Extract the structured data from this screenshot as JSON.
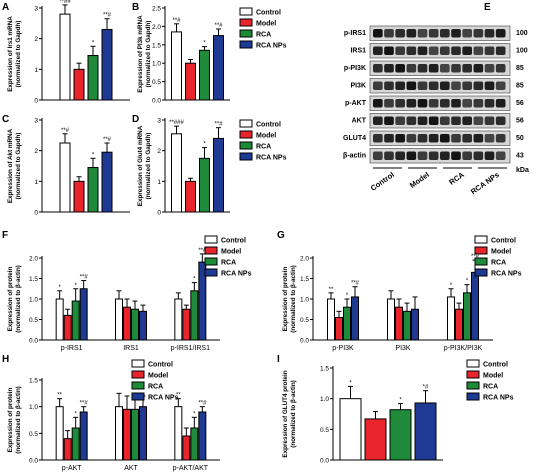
{
  "colors": {
    "control": "#ffffff",
    "model": "#e8252b",
    "rca": "#1f8a3a",
    "rca_nps": "#1f3a93",
    "bar_stroke": "#000000"
  },
  "legend_labels": [
    "Control",
    "Model",
    "RCA",
    "RCA NPs"
  ],
  "chart_data": [
    {
      "id": "A",
      "type": "bar",
      "ylabel": "Expression of Irs1 mRNA\n(normalized to Gapdh)",
      "ylim": [
        0,
        3
      ],
      "yticks": [
        "0",
        "1",
        "2",
        "3"
      ],
      "categories": [
        ""
      ],
      "series": [
        {
          "name": "Control",
          "values": [
            2.8
          ],
          "err": [
            0.3
          ],
          "annot": "**##"
        },
        {
          "name": "Model",
          "values": [
            1.0
          ],
          "err": [
            0.2
          ],
          "annot": ""
        },
        {
          "name": "RCA",
          "values": [
            1.45
          ],
          "err": [
            0.3
          ],
          "annot": "*"
        },
        {
          "name": "RCA NPs",
          "values": [
            2.3
          ],
          "err": [
            0.35
          ],
          "annot": "**#"
        }
      ]
    },
    {
      "id": "B",
      "type": "bar",
      "ylabel": "Expression of PI3k mRNA\n(normalized to Gapdh)",
      "ylim": [
        0,
        2.5
      ],
      "yticks": [
        "0.0",
        "0.5",
        "1.0",
        "1.5",
        "2.0",
        "2.5"
      ],
      "categories": [
        ""
      ],
      "series": [
        {
          "name": "Control",
          "values": [
            1.85
          ],
          "err": [
            0.22
          ],
          "annot": "**#"
        },
        {
          "name": "Model",
          "values": [
            1.0
          ],
          "err": [
            0.1
          ],
          "annot": ""
        },
        {
          "name": "RCA",
          "values": [
            1.35
          ],
          "err": [
            0.1
          ],
          "annot": "*"
        },
        {
          "name": "RCA NPs",
          "values": [
            1.75
          ],
          "err": [
            0.18
          ],
          "annot": "**#"
        }
      ]
    },
    {
      "id": "C",
      "type": "bar",
      "ylabel": "Expression of Akt mRNA\n(normalized to Gapdh)",
      "ylim": [
        0,
        3
      ],
      "yticks": [
        "0",
        "1",
        "2",
        "3"
      ],
      "categories": [
        ""
      ],
      "series": [
        {
          "name": "Control",
          "values": [
            2.25
          ],
          "err": [
            0.3
          ],
          "annot": "**#"
        },
        {
          "name": "Model",
          "values": [
            1.0
          ],
          "err": [
            0.15
          ],
          "annot": ""
        },
        {
          "name": "RCA",
          "values": [
            1.45
          ],
          "err": [
            0.3
          ],
          "annot": "*"
        },
        {
          "name": "RCA NPs",
          "values": [
            1.95
          ],
          "err": [
            0.3
          ],
          "annot": "**#"
        }
      ]
    },
    {
      "id": "D",
      "type": "bar",
      "ylabel": "Expression of Glut4 mRNA\n(normalized to Gapdh)",
      "ylim": [
        0,
        3
      ],
      "yticks": [
        "0",
        "1",
        "2",
        "3"
      ],
      "categories": [
        ""
      ],
      "series": [
        {
          "name": "Control",
          "values": [
            2.55
          ],
          "err": [
            0.25
          ],
          "annot": "**###"
        },
        {
          "name": "Model",
          "values": [
            1.0
          ],
          "err": [
            0.1
          ],
          "annot": ""
        },
        {
          "name": "RCA",
          "values": [
            1.75
          ],
          "err": [
            0.35
          ],
          "annot": "*"
        },
        {
          "name": "RCA NPs",
          "values": [
            2.4
          ],
          "err": [
            0.35
          ],
          "annot": "**#"
        }
      ]
    },
    {
      "id": "F",
      "type": "bar",
      "ylabel": "Expression of protein\n(normalized to β-actin)",
      "ylim": [
        0,
        2.0
      ],
      "yticks": [
        "0.0",
        "0.5",
        "1.0",
        "1.5",
        "2.0"
      ],
      "categories": [
        "p-IRS1",
        "IRS1",
        "p-IRS1/IRS1"
      ],
      "series": [
        {
          "name": "Control",
          "values": [
            1.0,
            1.0,
            1.0
          ],
          "err": [
            0.2,
            0.2,
            0.15
          ],
          "annot": [
            "*",
            "",
            ""
          ]
        },
        {
          "name": "Model",
          "values": [
            0.6,
            0.8,
            0.75
          ],
          "err": [
            0.15,
            0.2,
            0.1
          ],
          "annot": [
            "",
            "",
            ""
          ]
        },
        {
          "name": "RCA",
          "values": [
            0.95,
            0.75,
            1.2
          ],
          "err": [
            0.3,
            0.2,
            0.2
          ],
          "annot": [
            "*",
            "",
            "*"
          ]
        },
        {
          "name": "RCA NPs",
          "values": [
            1.25,
            0.7,
            1.9
          ],
          "err": [
            0.2,
            0.15,
            0.2
          ],
          "annot": [
            "**#",
            "",
            "**#"
          ]
        }
      ]
    },
    {
      "id": "G",
      "type": "bar",
      "ylabel": "Expression of protein\n(normalized to β-actin)",
      "ylim": [
        0,
        2.0
      ],
      "yticks": [
        "0.0",
        "0.5",
        "1.0",
        "1.5",
        "2.0"
      ],
      "categories": [
        "p-PI3K",
        "PI3K",
        "p-PI3K/PI3K"
      ],
      "series": [
        {
          "name": "Control",
          "values": [
            1.0,
            1.0,
            1.05
          ],
          "err": [
            0.15,
            0.2,
            0.2
          ],
          "annot": [
            "**",
            "",
            "*"
          ]
        },
        {
          "name": "Model",
          "values": [
            0.55,
            0.8,
            0.75
          ],
          "err": [
            0.15,
            0.2,
            0.15
          ],
          "annot": [
            "",
            "",
            ""
          ]
        },
        {
          "name": "RCA",
          "values": [
            0.8,
            0.7,
            1.15
          ],
          "err": [
            0.2,
            0.2,
            0.2
          ],
          "annot": [
            "*",
            "",
            "*"
          ]
        },
        {
          "name": "RCA NPs",
          "values": [
            1.05,
            0.75,
            1.65
          ],
          "err": [
            0.25,
            0.3,
            0.3
          ],
          "annot": [
            "**#",
            "",
            "**#"
          ]
        }
      ]
    },
    {
      "id": "H",
      "type": "bar",
      "ylabel": "Expression of protein\n(normalized to β-actin)",
      "ylim": [
        0,
        1.5
      ],
      "yticks": [
        "0.0",
        "0.5",
        "1.0",
        "1.5"
      ],
      "categories": [
        "p-AKT",
        "AKT",
        "p-AKT/AKT"
      ],
      "series": [
        {
          "name": "Control",
          "values": [
            1.0,
            1.0,
            1.0
          ],
          "err": [
            0.15,
            0.25,
            0.15
          ],
          "annot": [
            "**",
            "",
            "**"
          ]
        },
        {
          "name": "Model",
          "values": [
            0.4,
            0.95,
            0.45
          ],
          "err": [
            0.15,
            0.25,
            0.15
          ],
          "annot": [
            "",
            "",
            ""
          ]
        },
        {
          "name": "RCA",
          "values": [
            0.6,
            0.95,
            0.6
          ],
          "err": [
            0.2,
            0.25,
            0.2
          ],
          "annot": [
            "*",
            "",
            "*"
          ]
        },
        {
          "name": "RCA NPs",
          "values": [
            0.9,
            1.0,
            0.9
          ],
          "err": [
            0.1,
            0.2,
            0.1
          ],
          "annot": [
            "**#",
            "",
            "**#"
          ]
        }
      ]
    },
    {
      "id": "I",
      "type": "bar",
      "ylabel": "Expression of GLUT4 protein\n(normalized to β-actin)",
      "ylim": [
        0,
        1.5
      ],
      "yticks": [
        "0.0",
        "0.5",
        "1.0",
        "1.5"
      ],
      "categories": [
        ""
      ],
      "series": [
        {
          "name": "Control",
          "values": [
            1.0
          ],
          "err": [
            0.2
          ],
          "annot": "*"
        },
        {
          "name": "Model",
          "values": [
            0.67
          ],
          "err": [
            0.12
          ],
          "annot": ""
        },
        {
          "name": "RCA",
          "values": [
            0.82
          ],
          "err": [
            0.1
          ],
          "annot": "*"
        },
        {
          "name": "RCA NPs",
          "values": [
            0.93
          ],
          "err": [
            0.2
          ],
          "annot": "*#"
        }
      ]
    }
  ],
  "blot": {
    "label": "E",
    "rows": [
      {
        "name": "p-IRS1",
        "kda": "100"
      },
      {
        "name": "IRS1",
        "kda": "100"
      },
      {
        "name": "p-PI3K",
        "kda": "85"
      },
      {
        "name": "PI3K",
        "kda": "85"
      },
      {
        "name": "p-AKT",
        "kda": "56"
      },
      {
        "name": "AKT",
        "kda": "56"
      },
      {
        "name": "GLUT4",
        "kda": "50"
      },
      {
        "name": "β-actin",
        "kda": "43"
      }
    ],
    "unit": "kDa",
    "lanes": [
      "Control",
      "Model",
      "RCA",
      "RCA NPs"
    ]
  }
}
